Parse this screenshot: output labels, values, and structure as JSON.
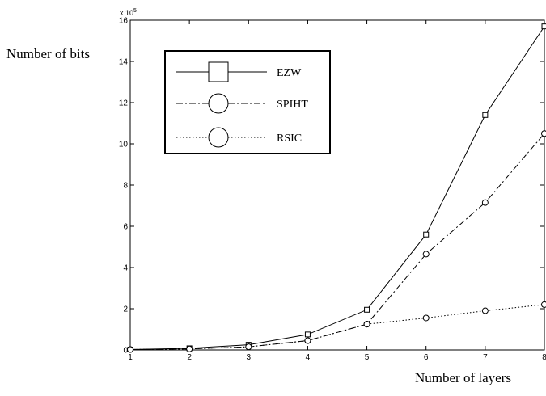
{
  "chart_data": {
    "type": "line",
    "xlabel": "Number of layers",
    "ylabel": "Number of bits",
    "x": [
      1,
      2,
      3,
      4,
      5,
      6,
      7,
      8
    ],
    "xlim": [
      1,
      8
    ],
    "ylim": [
      0,
      16
    ],
    "y_multiplier": {
      "base": "x 10",
      "exponent": "5"
    },
    "x_ticks": [
      "1",
      "2",
      "3",
      "4",
      "5",
      "6",
      "7",
      "8"
    ],
    "y_ticks": [
      "0",
      "2",
      "4",
      "6",
      "8",
      "10",
      "12",
      "14",
      "16"
    ],
    "grid": false,
    "legend_position": "top-left",
    "series": [
      {
        "name": "EZW",
        "line_style": "solid",
        "marker": "square",
        "values": [
          0.02,
          0.08,
          0.25,
          0.75,
          1.95,
          5.6,
          11.4,
          15.7
        ]
      },
      {
        "name": "SPIHT",
        "line_style": "dash-dot",
        "marker": "circle",
        "values": [
          0.02,
          0.05,
          0.15,
          0.45,
          1.25,
          4.65,
          7.15,
          10.5
        ]
      },
      {
        "name": "RSIC",
        "line_style": "dotted",
        "marker": "circle",
        "values": [
          0.02,
          0.05,
          0.15,
          0.45,
          1.25,
          1.55,
          1.9,
          2.2
        ]
      }
    ]
  }
}
